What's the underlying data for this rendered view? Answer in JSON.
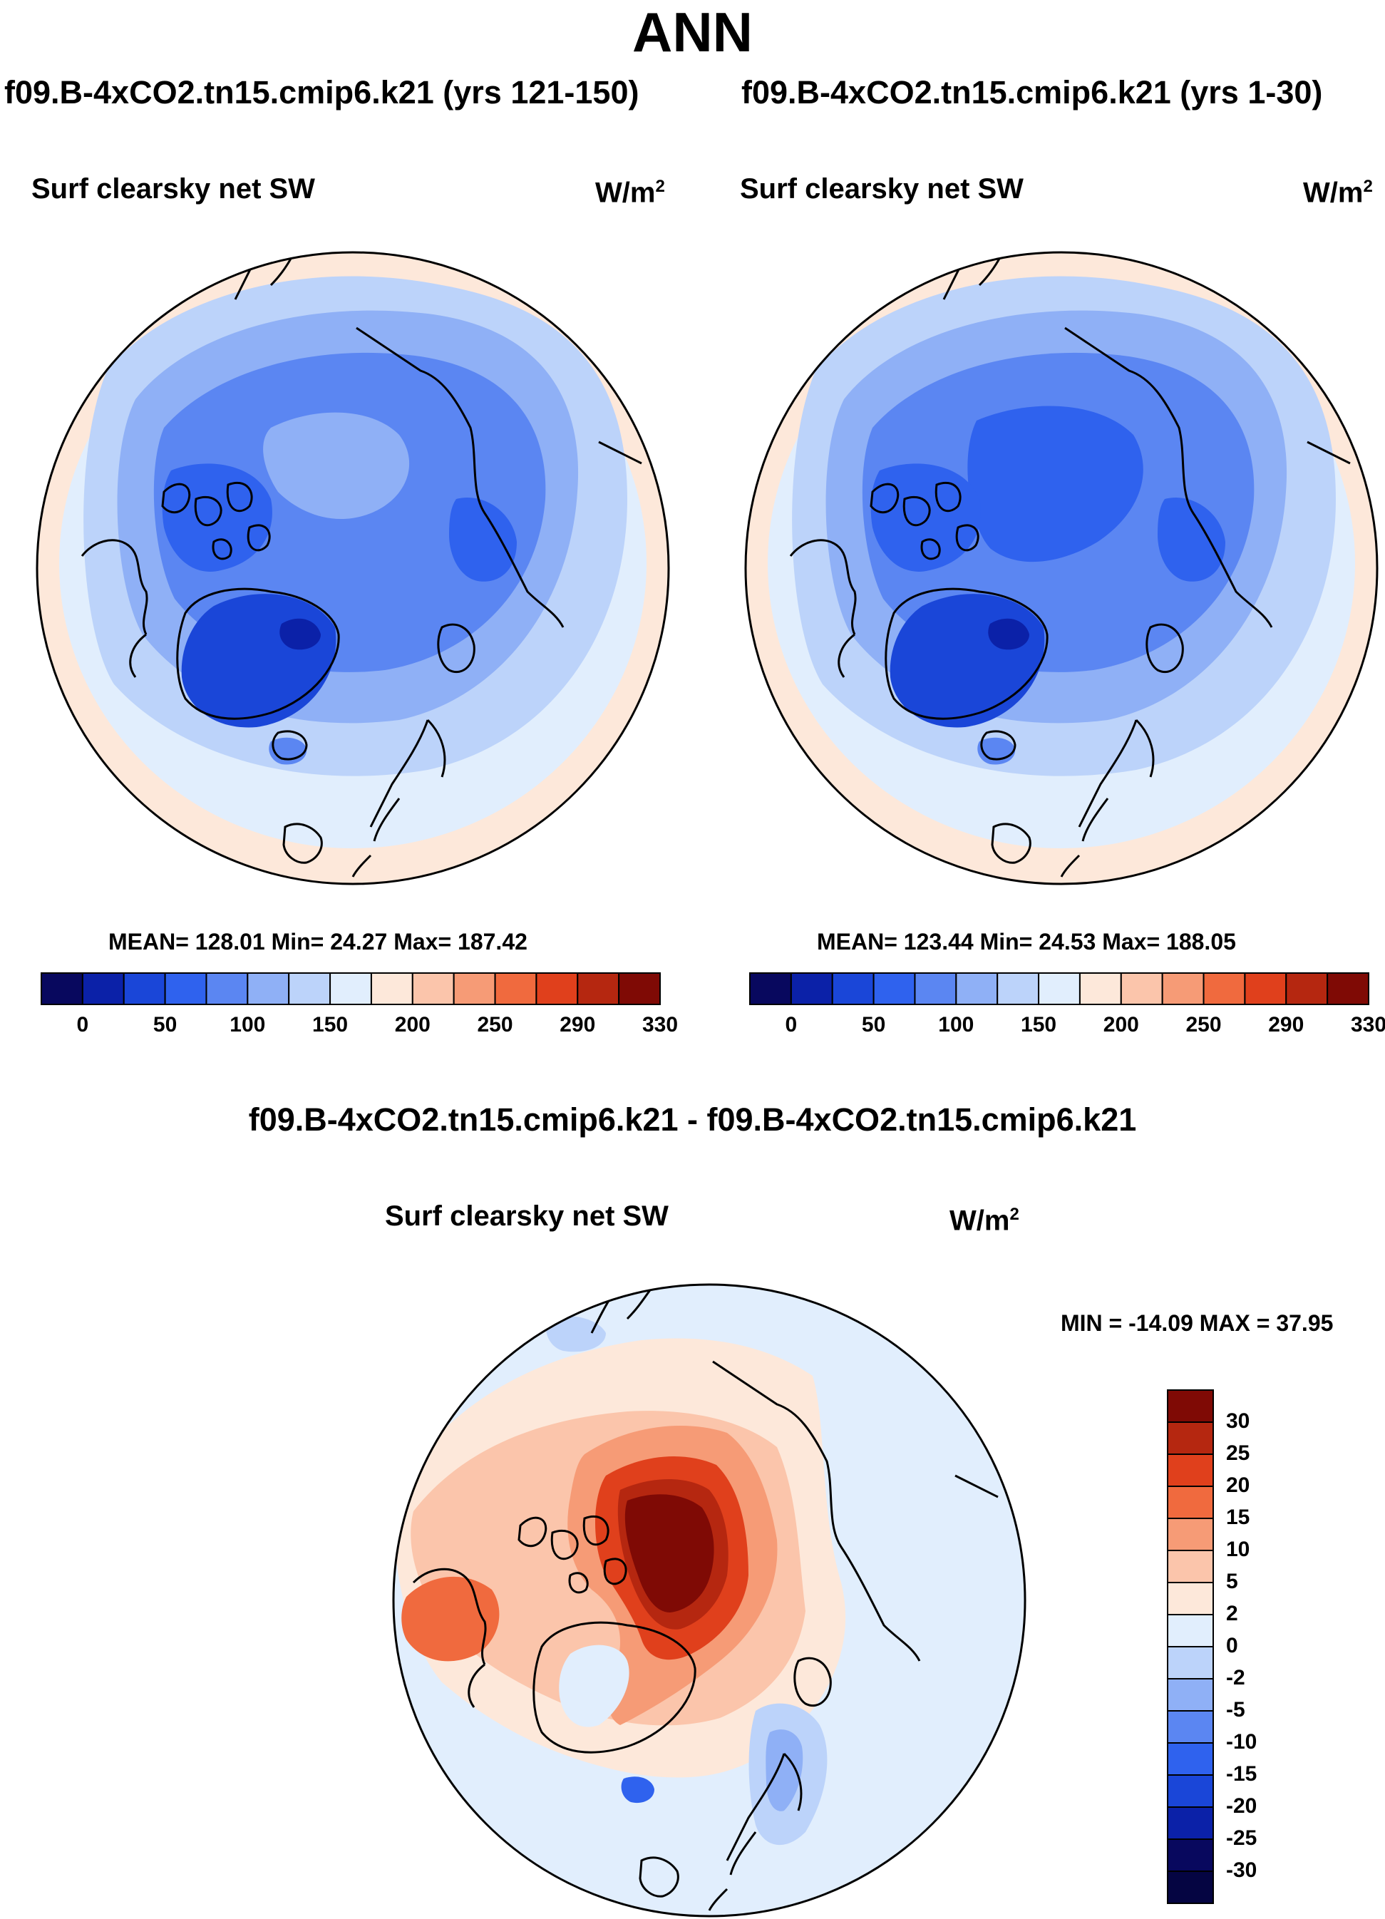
{
  "figure": {
    "title": "ANN",
    "diff_title": "f09.B-4xCO2.tn15.cmip6.k21 - f09.B-4xCO2.tn15.cmip6.k21"
  },
  "panels": [
    {
      "case_title": "f09.B-4xCO2.tn15.cmip6.k21 (yrs 121-150)",
      "label": "Surf clearsky net SW",
      "units_base": "W/m",
      "units_exp": "2",
      "stats": "MEAN= 128.01  Min=  24.27  Max= 187.42"
    },
    {
      "case_title": "f09.B-4xCO2.tn15.cmip6.k21 (yrs 1-30)",
      "label": "Surf clearsky net SW",
      "units_base": "W/m",
      "units_exp": "2",
      "stats": "MEAN= 123.44  Min=  24.53  Max= 188.05"
    },
    {
      "label": "Surf clearsky net SW",
      "units_base": "W/m",
      "units_exp": "2",
      "stats": "MIN = -14.09 MAX =  37.95"
    }
  ],
  "chart_data": [
    {
      "type": "heatmap",
      "projection": "north polar stereographic",
      "title": "f09.B-4xCO2.tn15.cmip6.k21 (yrs 121-150)",
      "variable": "Surf clearsky net SW",
      "units": "W/m2",
      "mean": 128.01,
      "min": 24.27,
      "max": 187.42,
      "colorbar_levels": [
        0,
        25,
        50,
        75,
        100,
        125,
        150,
        175,
        200,
        225,
        250,
        270,
        290,
        310,
        330
      ],
      "colorbar_tick_labels": [
        "0",
        "50",
        "100",
        "150",
        "200",
        "250",
        "290",
        "330"
      ],
      "colorbar_colors": [
        "#08085e",
        "#0b21a8",
        "#1a46d8",
        "#2f62ee",
        "#5b86f2",
        "#8fb0f6",
        "#bcd3fa",
        "#e1eefd",
        "#fde8da",
        "#fbc5ab",
        "#f69b76",
        "#f06a3e",
        "#e0401c",
        "#b52710",
        "#7f0a05"
      ]
    },
    {
      "type": "heatmap",
      "projection": "north polar stereographic",
      "title": "f09.B-4xCO2.tn15.cmip6.k21 (yrs 1-30)",
      "variable": "Surf clearsky net SW",
      "units": "W/m2",
      "mean": 123.44,
      "min": 24.53,
      "max": 188.05,
      "colorbar_levels": [
        0,
        25,
        50,
        75,
        100,
        125,
        150,
        175,
        200,
        225,
        250,
        270,
        290,
        310,
        330
      ],
      "colorbar_tick_labels": [
        "0",
        "50",
        "100",
        "150",
        "200",
        "250",
        "290",
        "330"
      ],
      "colorbar_colors": [
        "#08085e",
        "#0b21a8",
        "#1a46d8",
        "#2f62ee",
        "#5b86f2",
        "#8fb0f6",
        "#bcd3fa",
        "#e1eefd",
        "#fde8da",
        "#fbc5ab",
        "#f69b76",
        "#f06a3e",
        "#e0401c",
        "#b52710",
        "#7f0a05"
      ]
    },
    {
      "type": "heatmap",
      "projection": "north polar stereographic",
      "title": "f09.B-4xCO2.tn15.cmip6.k21 - f09.B-4xCO2.tn15.cmip6.k21",
      "variable": "Surf clearsky net SW",
      "units": "W/m2",
      "min": -14.09,
      "max": 37.95,
      "colorbar_orientation": "vertical",
      "colorbar_tick_labels": [
        "30",
        "25",
        "20",
        "15",
        "10",
        "5",
        "2",
        "0",
        "-2",
        "-5",
        "-10",
        "-15",
        "-20",
        "-25",
        "-30"
      ],
      "colorbar_colors": [
        "#7f0a05",
        "#b52710",
        "#e0401c",
        "#f06a3e",
        "#f69b76",
        "#fbc5ab",
        "#fde8da",
        "#e1eefd",
        "#bcd3fa",
        "#8fb0f6",
        "#5b86f2",
        "#2f62ee",
        "#1a46d8",
        "#0b21a8",
        "#08085e",
        "#050542"
      ]
    }
  ]
}
